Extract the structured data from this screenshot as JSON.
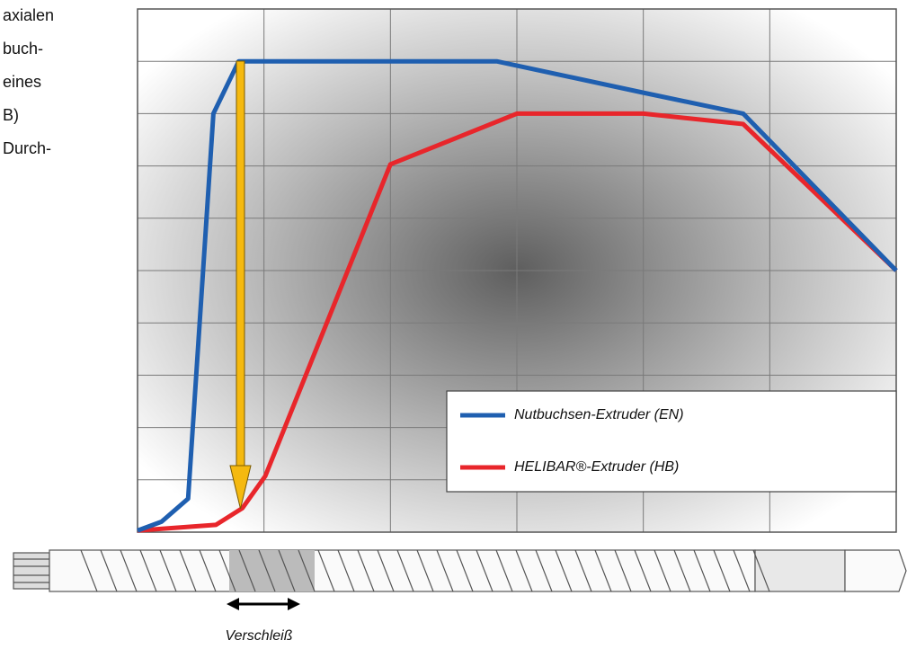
{
  "side_text": [
    "axialen",
    "buch-",
    "eines",
    "B)",
    "Durch-"
  ],
  "chart_data": {
    "type": "line",
    "xlim": [
      0,
      6
    ],
    "ylim": [
      0,
      10
    ],
    "xticks": [
      0,
      1,
      2,
      3,
      4,
      5,
      6
    ],
    "yticks": [
      0,
      1,
      2,
      3,
      4,
      5,
      6,
      7,
      8,
      9,
      10
    ],
    "grid": true,
    "legend": "lower right",
    "series": [
      {
        "name": "Nutbuchsen-Extruder (EN)",
        "color": "#1f5fb0",
        "x": [
          0,
          0.19,
          0.4,
          0.6,
          0.8,
          2.84,
          4.0,
          4.79,
          6
        ],
        "values": [
          0.03,
          0.2,
          0.64,
          8.0,
          9.0,
          9.0,
          8.4,
          8.0,
          5.0
        ]
      },
      {
        "name": "HELIBAR®-Extruder (HB)",
        "color": "#e8262b",
        "x": [
          0,
          0.62,
          0.83,
          1.01,
          2.0,
          3.0,
          4.0,
          4.79,
          6
        ],
        "values": [
          0.03,
          0.14,
          0.46,
          1.07,
          7.03,
          8.0,
          8.0,
          7.8,
          5.0
        ]
      }
    ],
    "annotation": "Verschleiß"
  }
}
